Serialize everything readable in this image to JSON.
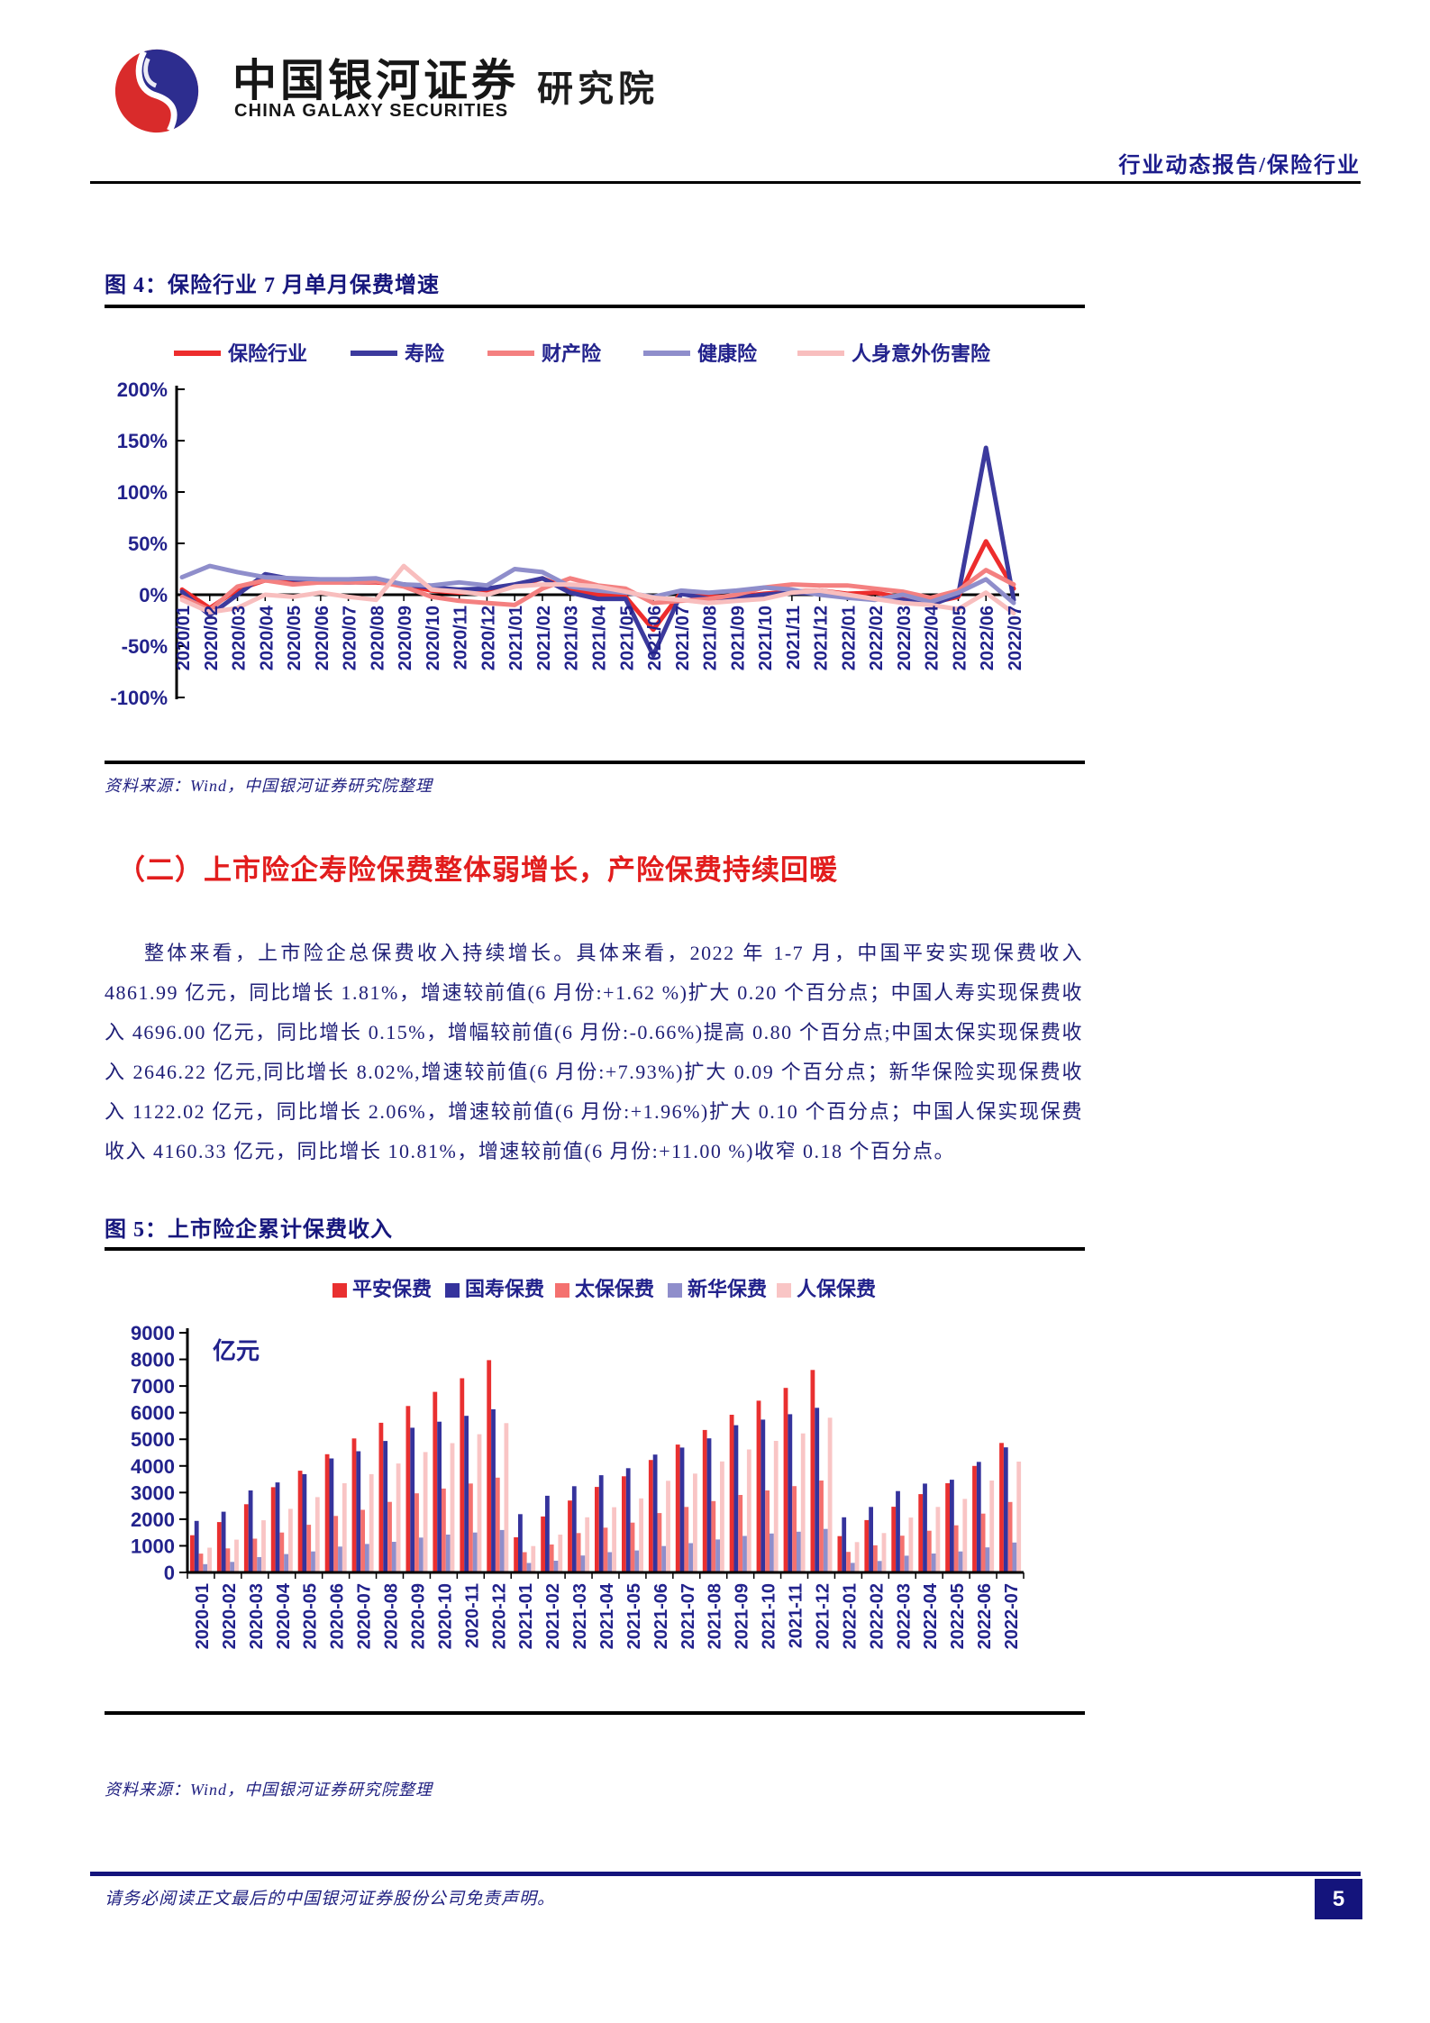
{
  "header": {
    "logo_cn": "中国银河证券",
    "logo_en": "CHINA GALAXY SECURITIES",
    "logo_suffix": "研究院",
    "report_type": "行业动态报告/保险行业"
  },
  "figure4": {
    "title": "图 4：保险行业 7 月单月保费增速",
    "source": "资料来源：Wind，中国银河证券研究院整理"
  },
  "section": {
    "heading": "（二）上市险企寿险保费整体弱增长，产险保费持续回暖",
    "paragraph": "整体来看，上市险企总保费收入持续增长。具体来看，2022 年 1-7 月，中国平安实现保费收入 4861.99 亿元，同比增长 1.81%，增速较前值(6 月份:+1.62 %)扩大 0.20 个百分点；中国人寿实现保费收入 4696.00 亿元，同比增长 0.15%，增幅较前值(6 月份:-0.66%)提高 0.80 个百分点;中国太保实现保费收入 2646.22 亿元,同比增长 8.02%,增速较前值(6 月份:+7.93%)扩大 0.09 个百分点；新华保险实现保费收入 1122.02 亿元，同比增长 2.06%，增速较前值(6 月份:+1.96%)扩大 0.10 个百分点；中国人保实现保费收入 4160.33 亿元，同比增长 10.81%，增速较前值(6 月份:+11.00 %)收窄 0.18 个百分点。"
  },
  "figure5": {
    "title": "图 5：上市险企累计保费收入",
    "source": "资料来源：Wind，中国银河证券研究院整理"
  },
  "footer": {
    "disclaimer": "请务必阅读正文最后的中国银河证券股份公司免责声明。",
    "page_number": "5"
  },
  "chart_data": [
    {
      "type": "line",
      "title": "保险行业7月单月保费增速",
      "unit": "%",
      "ylim": [
        -100,
        200
      ],
      "ytick_step": 50,
      "legend_position": "top",
      "grid": false,
      "x": [
        "2020/01",
        "2020/02",
        "2020/03",
        "2020/04",
        "2020/05",
        "2020/06",
        "2020/07",
        "2020/08",
        "2020/09",
        "2020/10",
        "2020/11",
        "2020/12",
        "2021/01",
        "2021/02",
        "2021/03",
        "2021/04",
        "2021/05",
        "2021/06",
        "2021/07",
        "2021/08",
        "2021/09",
        "2021/10",
        "2021/11",
        "2021/12",
        "2022/01",
        "2022/02",
        "2022/03",
        "2022/04",
        "2022/05",
        "2022/06",
        "2022/07"
      ],
      "series": [
        {
          "name": "保险行业",
          "color": "#ed2d2d",
          "values": [
            5,
            -13,
            5,
            14,
            13,
            12,
            12,
            12,
            10,
            4,
            2,
            3,
            8,
            16,
            5,
            0,
            -2,
            -34,
            2,
            -2,
            -2,
            1,
            3,
            4,
            1,
            2,
            -3,
            -8,
            -2,
            52,
            6
          ]
        },
        {
          "name": "寿险",
          "color": "#3c3a9d",
          "values": [
            3,
            -20,
            0,
            20,
            15,
            13,
            12,
            13,
            10,
            7,
            5,
            6,
            10,
            16,
            2,
            -4,
            -4,
            -59,
            1,
            -4,
            -3,
            0,
            2,
            1,
            -2,
            -4,
            -5,
            -10,
            0,
            143,
            -5
          ]
        },
        {
          "name": "财产险",
          "color": "#f48080",
          "values": [
            -2,
            -15,
            8,
            14,
            10,
            12,
            12,
            13,
            8,
            -2,
            -6,
            -8,
            -10,
            6,
            16,
            9,
            6,
            -8,
            -6,
            -4,
            0,
            7,
            10,
            9,
            9,
            6,
            3,
            -3,
            4,
            24,
            10
          ]
        },
        {
          "name": "健康险",
          "color": "#8f8ecb",
          "values": [
            17,
            28,
            22,
            17,
            16,
            15,
            15,
            16,
            10,
            9,
            12,
            9,
            25,
            22,
            8,
            4,
            2,
            -2,
            4,
            2,
            4,
            7,
            5,
            0,
            -3,
            -5,
            0,
            -7,
            2,
            15,
            -8
          ]
        },
        {
          "name": "人身意外伤害险",
          "color": "#f8bebe",
          "values": [
            -5,
            -17,
            -13,
            0,
            -2,
            2,
            -2,
            -5,
            28,
            5,
            3,
            0,
            8,
            10,
            10,
            8,
            3,
            -3,
            -5,
            -8,
            -6,
            -4,
            2,
            4,
            0,
            -4,
            -8,
            -10,
            -14,
            2,
            -18
          ]
        }
      ]
    },
    {
      "type": "bar",
      "title": "上市险企累计保费收入",
      "ylabel": "亿元",
      "ylim": [
        0,
        9000
      ],
      "ytick_step": 1000,
      "legend_position": "top",
      "grid": false,
      "categories": [
        "2020-01",
        "2020-02",
        "2020-03",
        "2020-04",
        "2020-05",
        "2020-06",
        "2020-07",
        "2020-08",
        "2020-09",
        "2020-10",
        "2020-11",
        "2020-12",
        "2021-01",
        "2021-02",
        "2021-03",
        "2021-04",
        "2021-05",
        "2021-06",
        "2021-07",
        "2021-08",
        "2021-09",
        "2021-10",
        "2021-11",
        "2021-12",
        "2022-01",
        "2022-02",
        "2022-03",
        "2022-04",
        "2022-05",
        "2022-06",
        "2022-07"
      ],
      "series": [
        {
          "name": "平安保费",
          "color": "#e93030",
          "values": [
            1398,
            1893,
            2560,
            3200,
            3820,
            4440,
            5030,
            5620,
            6250,
            6780,
            7290,
            7973,
            1320,
            2100,
            2700,
            3212,
            3610,
            4222,
            4800,
            5350,
            5920,
            6450,
            6930,
            7603,
            1365,
            1965,
            2465,
            2940,
            3350,
            3998,
            4862
          ]
        },
        {
          "name": "国寿保费",
          "color": "#35339c",
          "values": [
            1935,
            2280,
            3078,
            3380,
            3690,
            4280,
            4550,
            4935,
            5435,
            5660,
            5880,
            6129,
            2189,
            2880,
            3239,
            3652,
            3916,
            4426,
            4690,
            5035,
            5530,
            5740,
            5940,
            6183,
            2072,
            2460,
            3054,
            3335,
            3480,
            4150,
            4696
          ]
        },
        {
          "name": "太保保费",
          "color": "#f4716f",
          "values": [
            707,
            905,
            1270,
            1500,
            1790,
            2120,
            2350,
            2650,
            2970,
            3150,
            3340,
            3560,
            760,
            1050,
            1480,
            1680,
            1870,
            2230,
            2460,
            2680,
            2910,
            3080,
            3240,
            3450,
            770,
            1020,
            1380,
            1565,
            1770,
            2210,
            2646
          ]
        },
        {
          "name": "新华保费",
          "color": "#8f8ecb",
          "values": [
            310,
            395,
            575,
            690,
            790,
            970,
            1070,
            1150,
            1310,
            1420,
            1500,
            1595,
            355,
            440,
            635,
            760,
            825,
            990,
            1100,
            1240,
            1370,
            1460,
            1530,
            1635,
            360,
            430,
            630,
            710,
            790,
            940,
            1122
          ]
        },
        {
          "name": "人保保费",
          "color": "#f9c5c5",
          "values": [
            931,
            1230,
            1960,
            2390,
            2830,
            3350,
            3690,
            4090,
            4520,
            4855,
            5190,
            5605,
            990,
            1420,
            2070,
            2450,
            2780,
            3440,
            3710,
            4170,
            4620,
            4940,
            5220,
            5810,
            1140,
            1480,
            2060,
            2460,
            2760,
            3450,
            4160
          ]
        }
      ]
    }
  ]
}
